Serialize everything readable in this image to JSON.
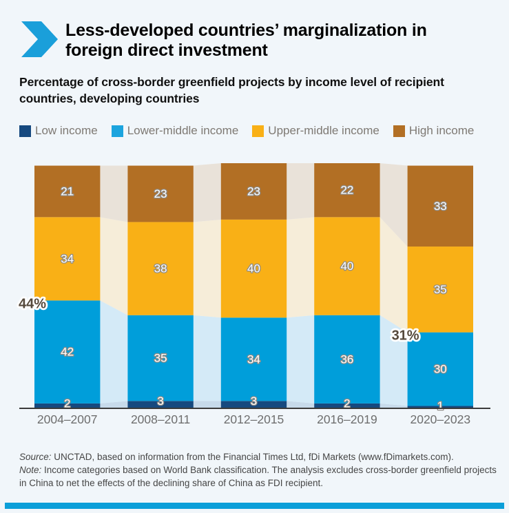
{
  "header": {
    "title_line1": "Less-developed countries’ marginalization in",
    "title_line2": "foreign direct investment",
    "subtitle_line1": "Percentage of cross-border greenfield projects by income level of recipient",
    "subtitle_line2": "countries, developing countries"
  },
  "legend": {
    "items": [
      {
        "label": "Low income",
        "color": "#16497f"
      },
      {
        "label": "Lower-middle income",
        "color": "#1ca4de"
      },
      {
        "label": "Upper-middle income",
        "color": "#f9b016"
      },
      {
        "label": "High income",
        "color": "#b26f24"
      }
    ]
  },
  "chart_data": {
    "type": "bar",
    "variant": "stacked-percent-with-flow-bands",
    "title": "Percentage of cross-border greenfield projects by income level of recipient countries, developing countries",
    "categories": [
      "2004–2007",
      "2008–2011",
      "2012–2015",
      "2016–2019",
      "2020–2023"
    ],
    "series": [
      {
        "name": "Low income",
        "color": "#16497f",
        "flow_color": "#c7daea",
        "values": [
          2,
          3,
          3,
          2,
          1
        ]
      },
      {
        "name": "Lower-middle income",
        "color": "#009eda",
        "flow_color": "#d4eaf7",
        "values": [
          42,
          35,
          34,
          36,
          30
        ]
      },
      {
        "name": "Upper-middle income",
        "color": "#f9b016",
        "flow_color": "#f6edd9",
        "values": [
          34,
          38,
          40,
          40,
          35
        ]
      },
      {
        "name": "High income",
        "color": "#b26f24",
        "flow_color": "#e9e2d9",
        "values": [
          21,
          23,
          23,
          22,
          33
        ]
      }
    ],
    "annotations": [
      {
        "text": "44%",
        "category_index": 0,
        "at_value": 44
      },
      {
        "text": "31%",
        "category_index": 4,
        "at_value": 31
      }
    ],
    "value_labels": true,
    "ylim": [
      0,
      100
    ],
    "grid": false,
    "legend_position": "top"
  },
  "footer": {
    "source_label": "Source:",
    "source_text": " UNCTAD, based on information from the Financial Times Ltd, fDi Markets (www.fDimarkets.com).",
    "note_label": "Note:",
    "note_text": " Income categories based on World Bank classification. The analysis excludes cross-border greenfield projects in China to net the effects of the declining share of China as FDI recipient."
  },
  "colors": {
    "background": "#f1f6fa",
    "accent_chevron": "#1a9fda",
    "bottom_bar": "#0c9fd9",
    "axis_line": "#3a3a3a",
    "axis_label": "#6e6e6e",
    "legend_label": "#7e7973",
    "annotation_text": "#55493c",
    "value_label": "#ffffff"
  },
  "icons": {
    "chevron": "right-chevron"
  }
}
